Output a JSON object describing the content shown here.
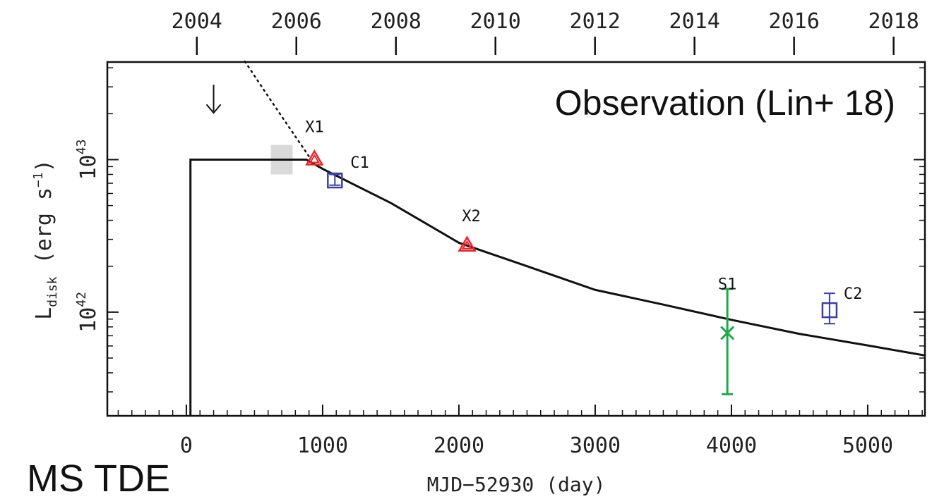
{
  "chart_data": {
    "type": "scatter",
    "title": "",
    "xlabel": "MJD−52930 (day)",
    "ylabel_main": "L",
    "ylabel_sub": "disk",
    "ylabel_rest": " (erg s",
    "ylabel_exp": "−1",
    "ylabel_close": ")",
    "yscale": "log",
    "xlim": [
      -580,
      5420
    ],
    "ylim_log10": [
      41.32,
      43.64
    ],
    "x_ticks": [
      {
        "value": 0,
        "label": "0"
      },
      {
        "value": 1000,
        "label": "1000"
      },
      {
        "value": 2000,
        "label": "2000"
      },
      {
        "value": 3000,
        "label": "3000"
      },
      {
        "value": 4000,
        "label": "4000"
      },
      {
        "value": 5000,
        "label": "5000"
      }
    ],
    "y_ticks": [
      {
        "log10": 42,
        "base": "10",
        "exp": "42"
      },
      {
        "log10": 43,
        "base": "10",
        "exp": "43"
      }
    ],
    "top_axis_ticks": [
      {
        "year": 2004,
        "label": "2004"
      },
      {
        "year": 2006,
        "label": "2006"
      },
      {
        "year": 2008,
        "label": "2008"
      },
      {
        "year": 2010,
        "label": "2010"
      },
      {
        "year": 2012,
        "label": "2012"
      },
      {
        "year": 2014,
        "label": "2014"
      },
      {
        "year": 2016,
        "label": "2016"
      },
      {
        "year": 2018,
        "label": "2018"
      }
    ],
    "annotation": "Observation (Lin+ 18)",
    "corner_label": "MS TDE",
    "model_curve": {
      "type": "step_then_powerlaw",
      "step_x": 30,
      "plateau_L": 1e+43,
      "points": [
        [
          880,
          1e+43
        ],
        [
          1000,
          8.7e+42
        ],
        [
          1500,
          5.2e+42
        ],
        [
          2000,
          2.85e+42
        ],
        [
          2500,
          2e+42
        ],
        [
          3000,
          1.4e+42
        ],
        [
          3500,
          1.12e+42
        ],
        [
          4000,
          8.9e+41
        ],
        [
          4500,
          7.2e+41
        ],
        [
          5000,
          6.05e+41
        ],
        [
          5420,
          5.2e+41
        ]
      ]
    },
    "extrapolation_dotted": [
      [
        430,
        4.4e+43
      ],
      [
        600,
        2.6e+43
      ],
      [
        750,
        1.65e+43
      ],
      [
        900,
        1.05e+43
      ]
    ],
    "upper_limit": {
      "x": 200,
      "L": 2.3e+43
    },
    "shaded_region": {
      "x": [
        620,
        780
      ],
      "L": [
        8e+42,
        1.25e+43
      ]
    },
    "points": [
      {
        "name": "X1",
        "label": "X1",
        "x": 940,
        "L": 1.01e+43,
        "marker": "triangle",
        "color": "#e8232a"
      },
      {
        "name": "C1",
        "label": "C1",
        "x": 1090,
        "L": 7.3e+42,
        "err_lo": 6.8e+42,
        "err_hi": 8e+42,
        "marker": "square",
        "color": "#3a3fa8"
      },
      {
        "name": "X2",
        "label": "X2",
        "x": 2060,
        "L": 2.75e+42,
        "marker": "triangle",
        "color": "#e8232a"
      },
      {
        "name": "S1",
        "label": "S1",
        "x": 3970,
        "L": 7.3e+41,
        "err_lo": 2.9e+41,
        "err_hi": 1.42e+42,
        "marker": "cross",
        "color": "#1fa84a"
      },
      {
        "name": "C2",
        "label": "C2",
        "x": 4720,
        "L": 1.03e+42,
        "err_lo": 8.4e+41,
        "err_hi": 1.33e+42,
        "marker": "square",
        "color": "#3a3fa8"
      }
    ]
  }
}
